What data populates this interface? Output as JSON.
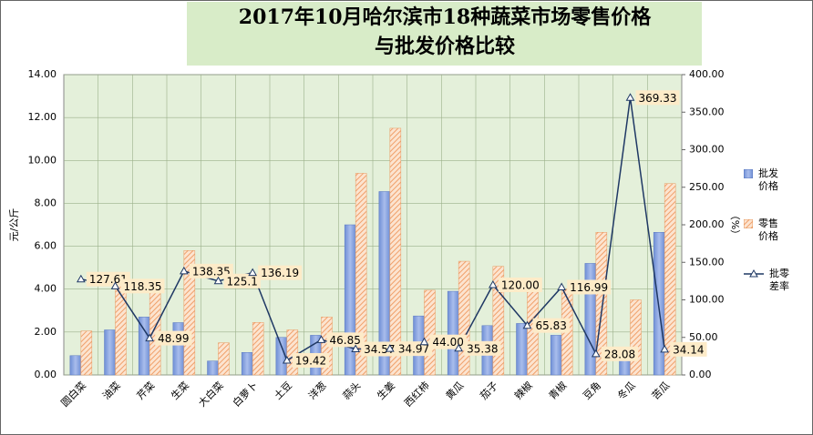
{
  "chart_data": {
    "type": "bar",
    "title_lines": [
      "2017年10月哈尔滨市18种蔬菜市场零售价格",
      "与批发价格比较"
    ],
    "ylabel": "元/公斤",
    "y2label": "（%）",
    "categories": [
      "圆白菜",
      "油菜",
      "芹菜",
      "生菜",
      "大白菜",
      "白萝卜",
      "土豆",
      "洋葱",
      "蒜头",
      "生姜",
      "西红柿",
      "黄瓜",
      "茄子",
      "辣椒",
      "青椒",
      "豆角",
      "冬瓜",
      "苦瓜"
    ],
    "series": [
      {
        "name": "批发价格",
        "color": "#8fa9e0",
        "values": [
          0.9,
          2.1,
          2.7,
          2.44,
          0.65,
          1.05,
          1.75,
          1.85,
          7.0,
          8.55,
          2.75,
          3.9,
          2.3,
          2.4,
          1.85,
          5.2,
          0.75,
          6.65
        ]
      },
      {
        "name": "零售价格",
        "color": "#f5b98a",
        "values": [
          2.05,
          4.6,
          4.0,
          5.8,
          1.5,
          2.45,
          2.1,
          2.7,
          9.4,
          11.5,
          3.95,
          5.3,
          5.06,
          3.98,
          4.0,
          6.65,
          3.5,
          8.92
        ]
      },
      {
        "name": "批零差率",
        "color": "#1f3864",
        "type": "line",
        "axis": "y2",
        "values": [
          127.61,
          118.35,
          48.99,
          138.35,
          125.1,
          136.19,
          19.42,
          46.85,
          34.57,
          34.97,
          44,
          35.38,
          120,
          65.83,
          116.99,
          28.08,
          369.33,
          34.14
        ],
        "value_labels": [
          "127.61",
          "118.35",
          "48.99",
          "138.35",
          "125.1",
          "136.19",
          "19.42",
          "46.85",
          "34.57",
          "34.97",
          "44.00",
          "35.38",
          "120.00",
          "65.83",
          "116.99",
          "28.08",
          "369.33",
          "34.14"
        ]
      }
    ],
    "ylim": [
      0,
      14
    ],
    "yticks": [
      {
        "value": 0,
        "label": "0.00"
      },
      {
        "value": 2,
        "label": "2.00"
      },
      {
        "value": 4,
        "label": "4.00"
      },
      {
        "value": 6,
        "label": "6.00"
      },
      {
        "value": 8,
        "label": "8.00"
      },
      {
        "value": 10,
        "label": "10.00"
      },
      {
        "value": 12,
        "label": "12.00"
      },
      {
        "value": 14,
        "label": "14.00"
      }
    ],
    "y2lim": [
      0,
      400
    ],
    "y2ticks": [
      {
        "value": 0,
        "label": "0.00"
      },
      {
        "value": 50,
        "label": "50.00"
      },
      {
        "value": 100,
        "label": "100.00"
      },
      {
        "value": 150,
        "label": "150.00"
      },
      {
        "value": 200,
        "label": "200.00"
      },
      {
        "value": 250,
        "label": "250.00"
      },
      {
        "value": 300,
        "label": "300.00"
      },
      {
        "value": 350,
        "label": "350.00"
      },
      {
        "value": 400,
        "label": "400.00"
      }
    ],
    "grid": true
  }
}
